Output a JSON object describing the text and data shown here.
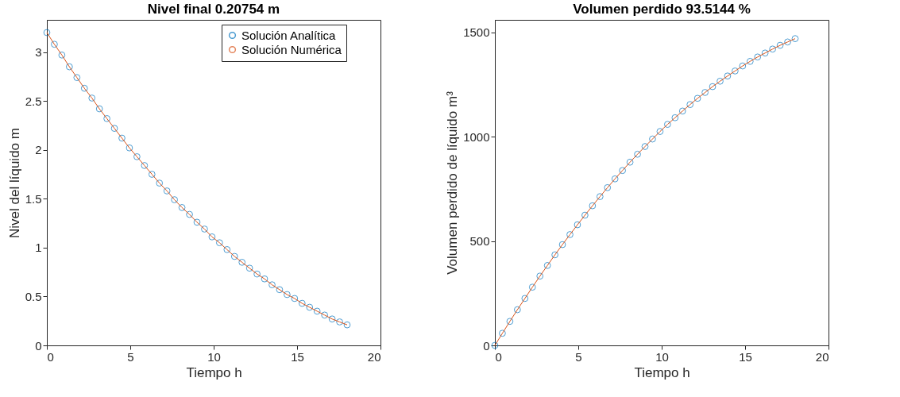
{
  "chart_data": [
    {
      "type": "line",
      "title": "Nivel final 0.20754 m",
      "xlabel": "Tiempo h",
      "ylabel": "Nivel del líquido m",
      "xlim": [
        0,
        20
      ],
      "xticks": [
        0,
        5,
        10,
        15,
        20
      ],
      "ylim": [
        0,
        3.33
      ],
      "yticks": [
        0,
        0.5,
        1,
        1.5,
        2,
        2.5,
        3
      ],
      "grid": false,
      "legend": "top right",
      "x": [
        0,
        0.45,
        0.9,
        1.35,
        1.8,
        2.25,
        2.7,
        3.15,
        3.6,
        4.05,
        4.5,
        4.95,
        5.4,
        5.85,
        6.3,
        6.75,
        7.2,
        7.65,
        8.1,
        8.55,
        9,
        9.45,
        9.9,
        10.35,
        10.8,
        11.25,
        11.7,
        12.15,
        12.6,
        13.05,
        13.5,
        13.95,
        14.4,
        14.85,
        15.3,
        15.75,
        16.2,
        16.65,
        17.1,
        17.55,
        18
      ],
      "series": [
        {
          "name": "Solución Analítica",
          "type": "scatter",
          "marker": "circle",
          "color": "#0072bd",
          "values": [
            3.2,
            3.08,
            2.97,
            2.85,
            2.74,
            2.63,
            2.53,
            2.42,
            2.32,
            2.22,
            2.12,
            2.02,
            1.93,
            1.84,
            1.75,
            1.66,
            1.58,
            1.49,
            1.41,
            1.34,
            1.26,
            1.19,
            1.11,
            1.05,
            0.98,
            0.91,
            0.85,
            0.79,
            0.73,
            0.68,
            0.62,
            0.57,
            0.52,
            0.48,
            0.43,
            0.39,
            0.35,
            0.31,
            0.27,
            0.24,
            0.21
          ]
        },
        {
          "name": "Solución Numérica",
          "type": "line",
          "line_style": "solid",
          "color": "#d95319",
          "values": [
            3.2,
            3.08,
            2.97,
            2.85,
            2.74,
            2.63,
            2.53,
            2.42,
            2.32,
            2.22,
            2.12,
            2.02,
            1.93,
            1.84,
            1.75,
            1.66,
            1.58,
            1.49,
            1.41,
            1.34,
            1.26,
            1.19,
            1.11,
            1.05,
            0.98,
            0.91,
            0.85,
            0.79,
            0.73,
            0.68,
            0.62,
            0.57,
            0.52,
            0.48,
            0.43,
            0.39,
            0.35,
            0.31,
            0.27,
            0.24,
            0.21
          ]
        }
      ]
    },
    {
      "type": "line",
      "title": "Volumen perdido 93.5144 %",
      "xlabel": "Tiempo h",
      "ylabel": "Volumen perdido de líquido m³",
      "xlim": [
        0,
        20
      ],
      "xticks": [
        0,
        5,
        10,
        15,
        20
      ],
      "ylim": [
        0,
        1560
      ],
      "yticks": [
        0,
        500,
        1000,
        1500
      ],
      "grid": false,
      "x": [
        0,
        0.45,
        0.9,
        1.35,
        1.8,
        2.25,
        2.7,
        3.15,
        3.6,
        4.05,
        4.5,
        4.95,
        5.4,
        5.85,
        6.3,
        6.75,
        7.2,
        7.65,
        8.1,
        8.55,
        9,
        9.45,
        9.9,
        10.35,
        10.8,
        11.25,
        11.7,
        12.15,
        12.6,
        13.05,
        13.5,
        13.95,
        14.4,
        14.85,
        15.3,
        15.75,
        16.2,
        16.65,
        17.1,
        17.55,
        18
      ],
      "series": [
        {
          "type": "scatter",
          "marker": "circle",
          "color": "#0072bd",
          "values": [
            0,
            58,
            115,
            171,
            225,
            279,
            332,
            383,
            434,
            483,
            531,
            578,
            624,
            669,
            713,
            756,
            798,
            838,
            878,
            916,
            953,
            989,
            1025,
            1059,
            1091,
            1123,
            1154,
            1184,
            1212,
            1240,
            1266,
            1291,
            1315,
            1339,
            1361,
            1382,
            1401,
            1420,
            1438,
            1454,
            1470
          ]
        },
        {
          "type": "line",
          "line_style": "solid",
          "color": "#d95319",
          "values": [
            0,
            58,
            115,
            171,
            225,
            279,
            332,
            383,
            434,
            483,
            531,
            578,
            624,
            669,
            713,
            756,
            798,
            838,
            878,
            916,
            953,
            989,
            1025,
            1059,
            1091,
            1123,
            1154,
            1184,
            1212,
            1240,
            1266,
            1291,
            1315,
            1339,
            1361,
            1382,
            1401,
            1420,
            1438,
            1454,
            1470
          ]
        }
      ]
    }
  ]
}
